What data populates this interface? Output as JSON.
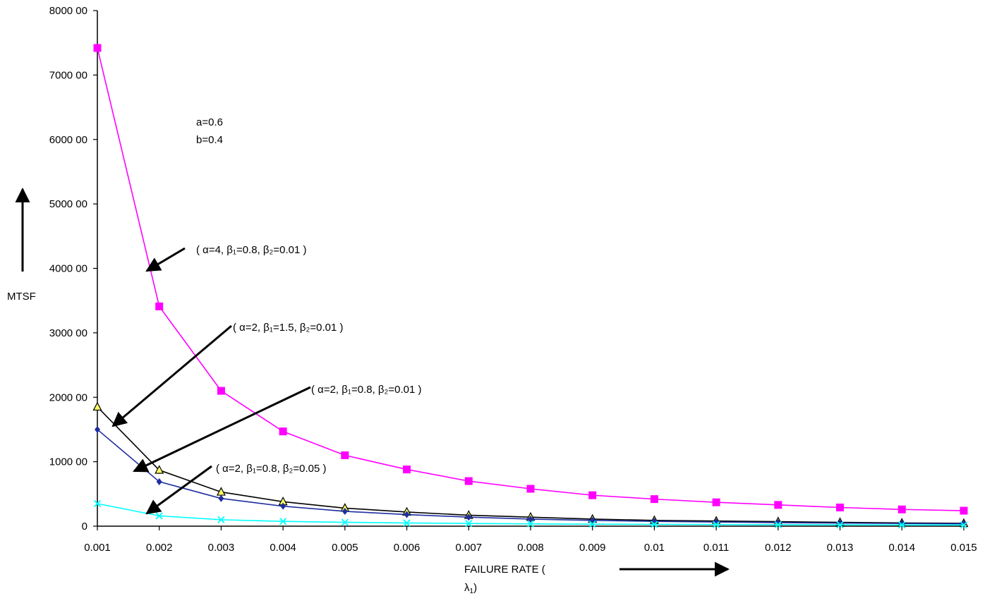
{
  "chart_data": {
    "type": "line",
    "x": [
      0.001,
      0.002,
      0.003,
      0.004,
      0.005,
      0.006,
      0.007,
      0.008,
      0.009,
      0.01,
      0.011,
      0.012,
      0.013,
      0.014,
      0.015
    ],
    "x_tick_labels": [
      "0.001",
      "0.002",
      "0.003",
      "0.004",
      "0.005",
      "0.006",
      "0.007",
      "0.008",
      "0.009",
      "0.01",
      "0.011",
      "0.012",
      "0.013",
      "0.014",
      "0.015"
    ],
    "y_ticks": [
      0,
      10000,
      20000,
      30000,
      40000,
      50000,
      60000,
      70000,
      80000
    ],
    "y_tick_labels": [
      "0",
      "1000 00",
      "2000 00",
      "3000 00",
      "4000 00",
      "5000 00",
      "6000 00",
      "7000 00",
      "8000 00"
    ],
    "ylim": [
      0,
      80000
    ],
    "xlabel": "FAILURE RATE (",
    "xlabel_symbol": "λ",
    "xlabel_symbol_sub": "1",
    "xlabel_close": ")",
    "ylabel": "MTSF",
    "grid": false,
    "legend": "none",
    "params": {
      "line1": "a=0.6",
      "line2": "b=0.4"
    },
    "series": [
      {
        "color": "#ff00ff",
        "marker": "square",
        "label": "( α=4, β₁=0.8, β₂=0.01 )",
        "values": [
          74200,
          34100,
          21000,
          14700,
          11000,
          8800,
          7000,
          5800,
          4800,
          4200,
          3700,
          3300,
          2900,
          2600,
          2400
        ]
      },
      {
        "color": "#000000",
        "marker": "triangle",
        "label": "( α=2, β₁=1.5, β₂=0.01 )",
        "values": [
          18500,
          8700,
          5300,
          3800,
          2800,
          2200,
          1700,
          1400,
          1100,
          900,
          800,
          700,
          600,
          500,
          450
        ]
      },
      {
        "color": "#1f2f9f",
        "marker": "diamond",
        "label": "( α=2, β₁=0.8, β₂=0.01 )",
        "values": [
          15000,
          6900,
          4300,
          3100,
          2300,
          1800,
          1400,
          1100,
          900,
          750,
          650,
          550,
          480,
          420,
          380
        ]
      },
      {
        "color": "#00ffff",
        "marker": "x",
        "label": "( α=2, β₁=0.8, β₂=0.05 )",
        "values": [
          3500,
          1600,
          1000,
          750,
          600,
          500,
          420,
          360,
          310,
          280,
          250,
          230,
          210,
          190,
          180
        ]
      }
    ]
  }
}
